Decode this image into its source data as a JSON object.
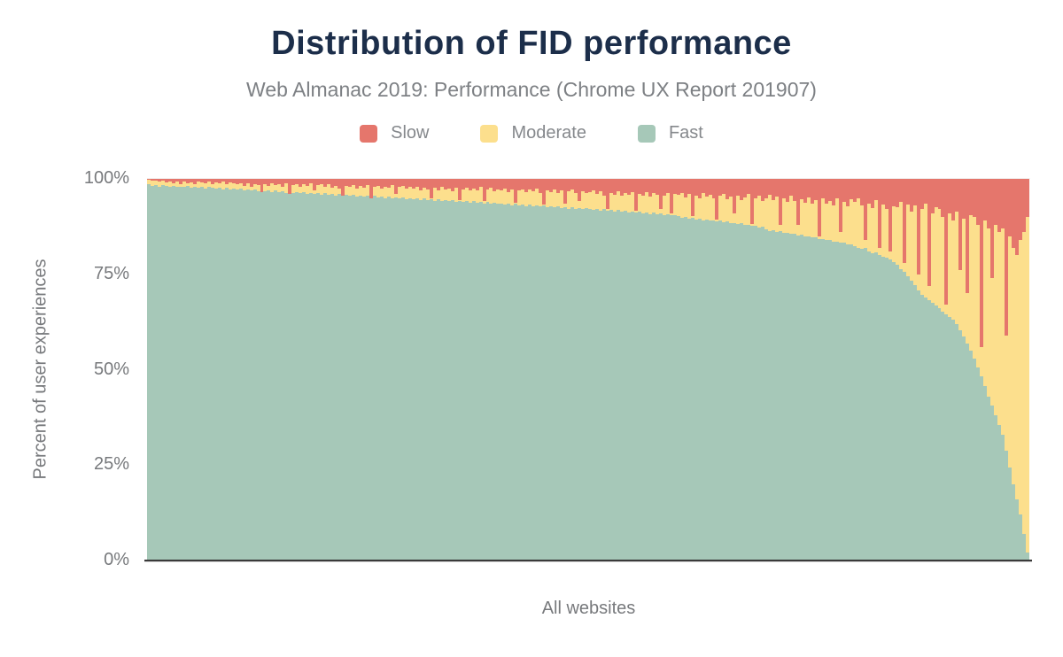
{
  "title": "Distribution of FID performance",
  "subtitle": "Web Almanac 2019: Performance (Chrome UX Report 201907)",
  "legend": [
    {
      "label": "Slow",
      "color": "#e5766c"
    },
    {
      "label": "Moderate",
      "color": "#fcdf8d"
    },
    {
      "label": "Fast",
      "color": "#a6c8b8"
    }
  ],
  "axes": {
    "y_title": "Percent of user experiences",
    "x_title": "All websites",
    "y_ticks": [
      {
        "label": "100%",
        "pct": 100
      },
      {
        "label": "75%",
        "pct": 75
      },
      {
        "label": "50%",
        "pct": 50
      },
      {
        "label": "25%",
        "pct": 25
      },
      {
        "label": "0%",
        "pct": 0
      }
    ]
  },
  "colors": {
    "slow": "#e5766c",
    "moderate": "#fcdf8d",
    "fast": "#a6c8b8",
    "title_text": "#1c2e4a",
    "subtitle_text": "#7d8084",
    "axis_text": "#77797c",
    "axis_line": "#3a3a3a"
  },
  "chart_data": {
    "type": "bar",
    "stacked": true,
    "title": "Distribution of FID performance",
    "subtitle": "Web Almanac 2019: Performance (Chrome UX Report 201907)",
    "xlabel": "All websites",
    "ylabel": "Percent of user experiences",
    "ylim": [
      0,
      100
    ],
    "grid": false,
    "legend_position": "top-center",
    "x_description": "Websites sorted from best to worst FID performance (percent of user experiences per site, stacked to 100%)",
    "series_order_top_to_bottom": [
      "Slow",
      "Moderate",
      "Fast"
    ],
    "moderate_rule": "moderate = 100 - fast - slow",
    "fast_values": [
      98.5,
      98.2,
      98.4,
      98.0,
      98.3,
      98.1,
      97.9,
      98.2,
      97.8,
      98.0,
      97.9,
      98.1,
      97.7,
      97.9,
      97.6,
      97.8,
      97.5,
      97.9,
      97.6,
      97.4,
      97.7,
      97.3,
      97.6,
      97.2,
      97.5,
      97.1,
      97.4,
      97.0,
      97.3,
      96.9,
      97.2,
      96.8,
      97.1,
      96.7,
      97.0,
      96.6,
      96.9,
      96.5,
      96.8,
      96.4,
      96.7,
      96.3,
      96.6,
      96.2,
      96.5,
      96.1,
      96.4,
      96.0,
      96.3,
      95.9,
      96.2,
      95.8,
      96.1,
      95.7,
      96.0,
      95.6,
      95.9,
      95.5,
      95.8,
      95.4,
      95.7,
      95.3,
      95.6,
      95.2,
      95.5,
      95.1,
      95.4,
      95.0,
      95.3,
      94.9,
      95.2,
      94.8,
      95.1,
      94.7,
      95.0,
      94.6,
      94.9,
      94.5,
      94.8,
      94.4,
      94.7,
      94.3,
      94.6,
      94.2,
      94.5,
      94.1,
      94.4,
      94.0,
      94.3,
      93.9,
      94.2,
      93.8,
      94.1,
      93.7,
      94.0,
      93.6,
      93.9,
      93.5,
      93.8,
      93.4,
      93.6,
      93.2,
      93.5,
      93.1,
      93.4,
      93.0,
      93.3,
      92.9,
      93.2,
      92.8,
      93.1,
      92.7,
      93.0,
      92.6,
      92.9,
      92.5,
      92.8,
      92.4,
      92.6,
      92.2,
      92.5,
      92.1,
      92.4,
      92.0,
      92.3,
      92.2,
      91.8,
      92.1,
      91.7,
      92.0,
      91.6,
      91.9,
      91.5,
      91.8,
      91.4,
      91.6,
      91.2,
      91.5,
      91.1,
      91.4,
      91.0,
      91.2,
      90.8,
      91.1,
      90.7,
      90.9,
      90.5,
      90.8,
      90.4,
      90.6,
      90.2,
      89.8,
      90.0,
      89.6,
      89.8,
      89.4,
      89.6,
      89.2,
      89.4,
      89.0,
      89.2,
      88.8,
      89.0,
      88.6,
      88.8,
      88.4,
      88.5,
      88.1,
      88.3,
      87.9,
      88.0,
      87.6,
      87.7,
      87.3,
      87.4,
      86.8,
      86.4,
      86.5,
      86.1,
      86.2,
      85.8,
      85.9,
      85.5,
      85.6,
      85.2,
      85.3,
      84.9,
      85.0,
      84.6,
      84.7,
      84.3,
      84.3,
      83.9,
      84.0,
      83.6,
      83.6,
      83.2,
      83.2,
      82.8,
      82.8,
      82.4,
      82.0,
      81.6,
      81.8,
      81.0,
      80.6,
      80.8,
      80.0,
      79.6,
      79.4,
      78.8,
      78.3,
      77.6,
      76.4,
      75.6,
      74.4,
      73.4,
      72.2,
      70.8,
      69.6,
      69.0,
      68.2,
      67.6,
      66.9,
      66.2,
      65.3,
      64.6,
      63.8,
      63.0,
      62.0,
      60.4,
      58.6,
      56.8,
      55.0,
      53.0,
      50.6,
      48.2,
      45.8,
      43.0,
      40.5,
      38.0,
      35.5,
      33.0,
      28.7,
      24.4,
      20.0,
      16.0,
      12.0,
      7.0,
      2.0
    ],
    "slow_values": [
      0.3,
      0.5,
      0.4,
      0.6,
      0.4,
      1.0,
      0.6,
      1.2,
      0.8,
      1.4,
      0.7,
      1.1,
      0.9,
      1.3,
      0.8,
      1.0,
      1.2,
      0.7,
      1.4,
      0.9,
      1.1,
      0.8,
      1.3,
      1.0,
      1.2,
      1.5,
      1.1,
      1.8,
      1.2,
      2.0,
      1.4,
      1.6,
      3.5,
      1.3,
      1.9,
      1.1,
      1.7,
      1.4,
      2.1,
      1.2,
      4.0,
      1.6,
      1.3,
      2.0,
      1.5,
      1.8,
      1.2,
      3.0,
      1.6,
      1.4,
      2.0,
      1.5,
      2.4,
      1.8,
      2.6,
      4.5,
      1.9,
      2.2,
      1.6,
      2.5,
      1.8,
      2.3,
      1.7,
      5.0,
      2.1,
      1.8,
      2.6,
      2.0,
      2.4,
      1.7,
      4.0,
      2.2,
      1.9,
      2.5,
      2.1,
      2.6,
      2.1,
      3.0,
      2.3,
      2.8,
      5.0,
      2.4,
      3.1,
      2.2,
      2.9,
      2.5,
      3.2,
      2.3,
      5.5,
      2.7,
      2.4,
      3.1,
      2.6,
      3.0,
      2.2,
      5.8,
      2.8,
      2.4,
      3.2,
      2.7,
      3.0,
      2.6,
      3.4,
      2.8,
      6.3,
      3.1,
      2.7,
      3.5,
      2.9,
      3.3,
      2.6,
      3.6,
      6.7,
      3.0,
      3.4,
      2.8,
      3.7,
      3.1,
      6.5,
      3.3,
      2.9,
      3.8,
      5.9,
      3.2,
      3.6,
      3.5,
      3.0,
      4.0,
      3.3,
      4.4,
      7.9,
      3.6,
      4.2,
      3.2,
      4.5,
      3.7,
      4.1,
      3.4,
      8.4,
      3.9,
      4.3,
      3.5,
      4.6,
      3.8,
      4.2,
      7.9,
      4.4,
      3.6,
      9.1,
      4.0,
      4.2,
      3.6,
      4.8,
      4.0,
      9.7,
      4.4,
      5.0,
      3.8,
      4.6,
      4.1,
      5.2,
      10.7,
      4.5,
      3.9,
      5.4,
      4.7,
      9.0,
      4.3,
      5.6,
      4.8,
      4.0,
      11.9,
      5.0,
      4.4,
      5.8,
      5.0,
      4.2,
      5.6,
      4.6,
      12.0,
      5.2,
      6.0,
      4.4,
      5.8,
      12.0,
      5.4,
      6.2,
      4.8,
      6.4,
      5.6,
      15.0,
      5.0,
      6.6,
      5.8,
      7.0,
      5.2,
      14.0,
      6.0,
      7.2,
      5.4,
      6.0,
      5.2,
      7.0,
      16.0,
      6.4,
      7.6,
      5.6,
      18.0,
      6.8,
      8.0,
      19.0,
      7.2,
      7.5,
      6.0,
      22.0,
      6.8,
      8.5,
      7.0,
      25.0,
      8.0,
      6.5,
      28.0,
      9.0,
      7.4,
      8.0,
      10.0,
      33.0,
      9.0,
      11.0,
      8.5,
      24.0,
      10.5,
      30.0,
      9.5,
      10.0,
      12.0,
      44.0,
      11.0,
      13.0,
      26.0,
      12.0,
      14.0,
      13.0,
      41.0,
      15.0,
      18.0,
      20.0,
      16.0,
      14.0,
      10.0
    ]
  }
}
